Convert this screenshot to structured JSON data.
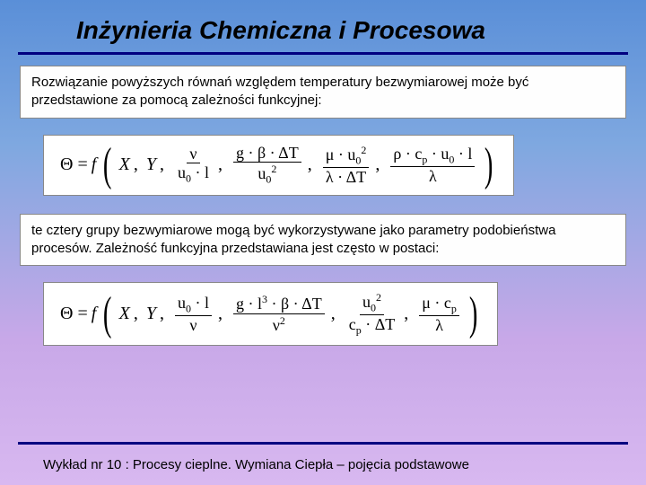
{
  "title": "Inżynieria Chemiczna i Procesowa",
  "para1": "Rozwiązanie powyższych równań względem temperatury bezwymiarowej może być przedstawione za pomocą zależności funkcyjnej:",
  "para2": "te cztery grupy bezwymiarowe mogą być wykorzystywane jako parametry podobieństwa procesów. Zależność funkcyjna przedstawiana jest często w postaci:",
  "footer": "Wykład nr 10  : Procesy cieplne.  Wymiana Ciepła – pojęcia podstawowe",
  "eq1": {
    "lhs": "Θ",
    "f": "f",
    "args_plain": [
      "X",
      "Y"
    ],
    "fracs": [
      {
        "num": "ν",
        "den": "u<sub class='sub'>0</sub> · l"
      },
      {
        "num": "g · β · ΔT",
        "den": "u<sub class='sub'>0</sub><sup class='sup'>2</sup>"
      },
      {
        "num": "μ · u<sub class='sub'>0</sub><sup class='sup'>2</sup>",
        "den": "λ · ΔT"
      },
      {
        "num": "ρ · c<sub class='sub'>p</sub> · u<sub class='sub'>0</sub> · l",
        "den": "λ"
      }
    ]
  },
  "eq2": {
    "lhs": "Θ",
    "f": "f",
    "args_plain": [
      "X",
      "Y"
    ],
    "fracs": [
      {
        "num": "u<sub class='sub'>0</sub> · l",
        "den": "ν"
      },
      {
        "num": "g · l<sup class='sup'>3</sup> · β · ΔT",
        "den": "ν<sup class='sup'>2</sup>"
      },
      {
        "num": "u<sub class='sub'>0</sub><sup class='sup'>2</sup>",
        "den": "c<sub class='sub'>p</sub> · ΔT"
      },
      {
        "num": "μ · c<sub class='sub'>p</sub>",
        "den": "λ"
      }
    ]
  },
  "style": {
    "bg_gradient": [
      "#5a8fd8",
      "#7fa8e0",
      "#c8a8e8",
      "#d8b8f0"
    ],
    "rule_color": "#000080",
    "title_fontsize": 28,
    "body_fontsize": 15,
    "eq_fontsize": 20,
    "frame_bg": "#ffffff",
    "frame_border": "#888888"
  }
}
